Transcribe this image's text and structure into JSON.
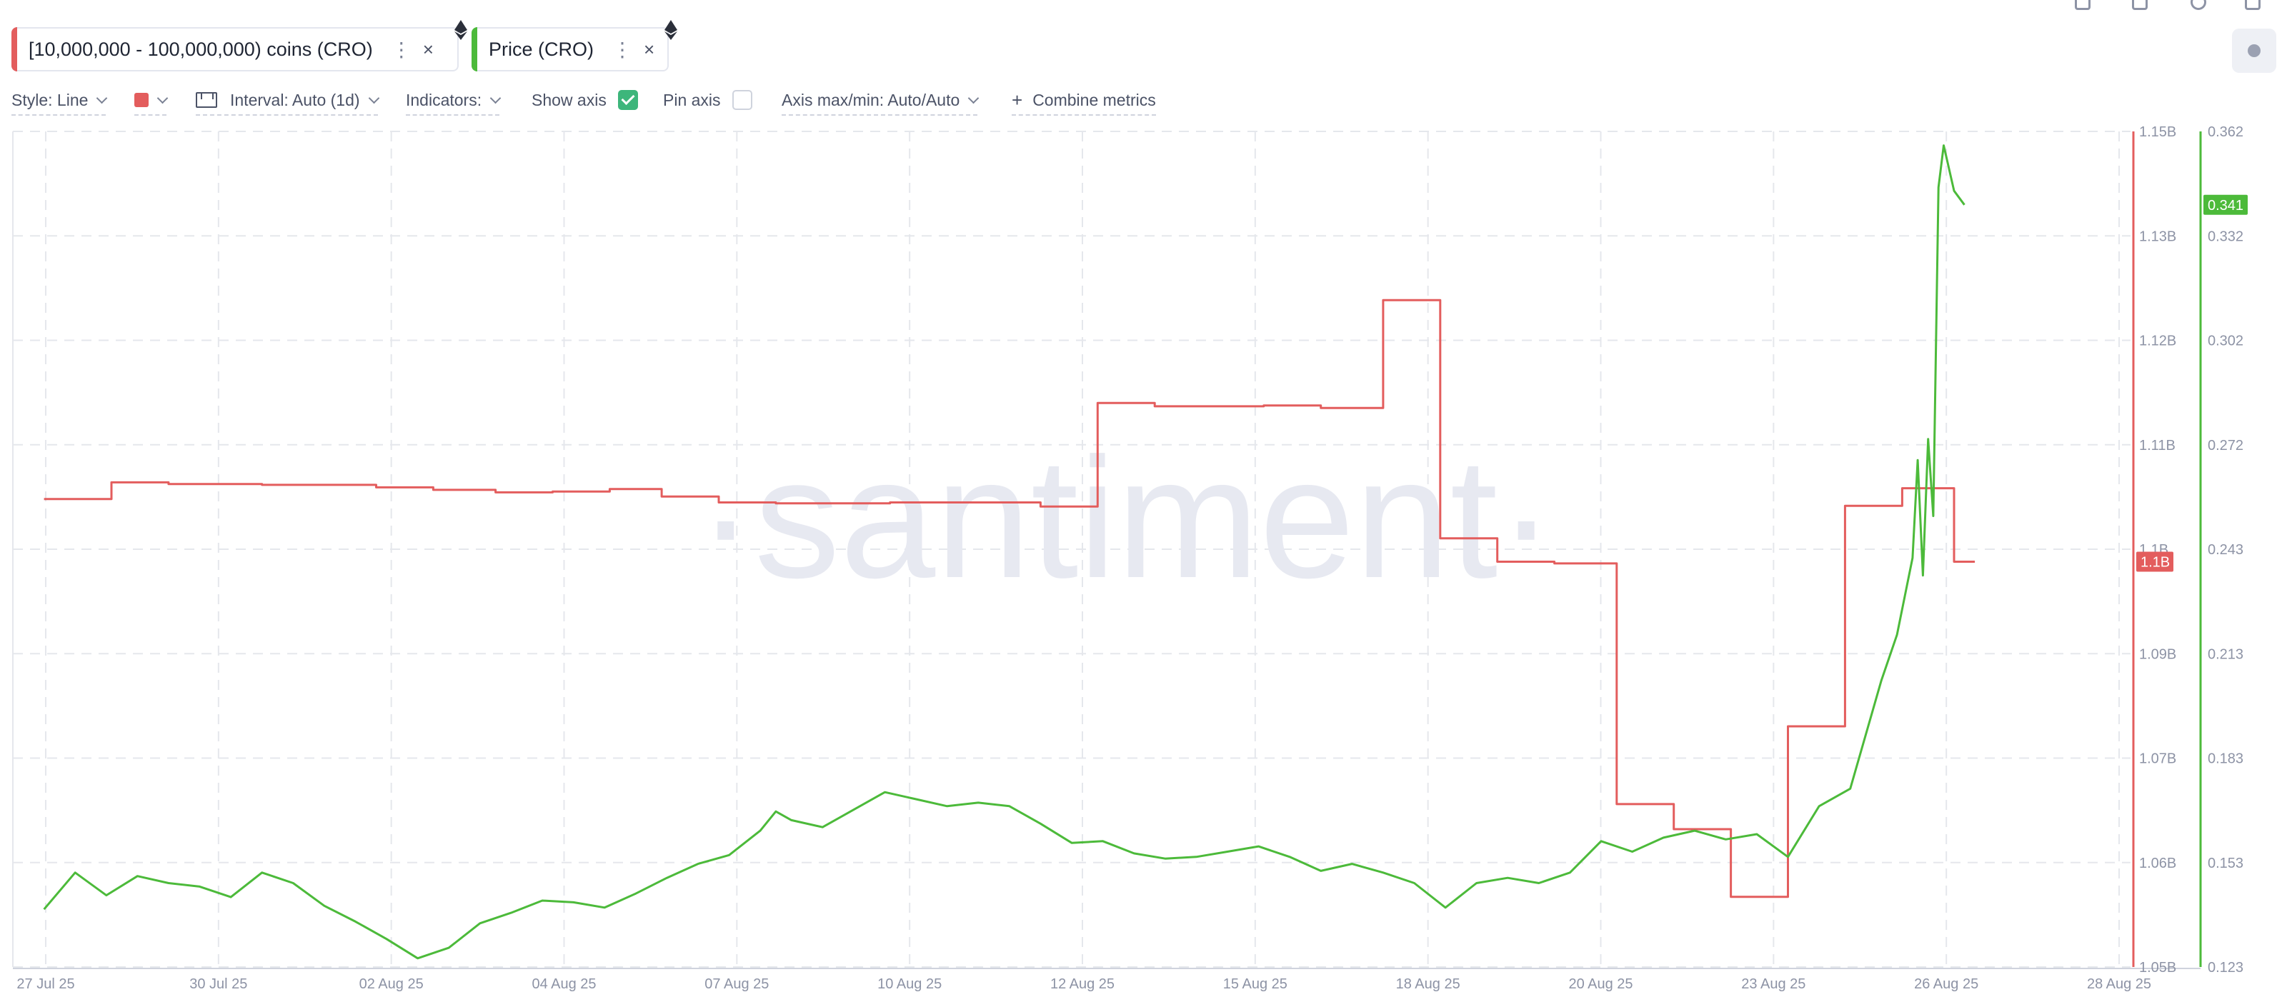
{
  "metrics": [
    {
      "label": "[10,000,000 - 100,000,000) coins (CRO)",
      "color": "#e35d5d",
      "icon": "ethereum-icon"
    },
    {
      "label": "Price (CRO)",
      "color": "#4cba3a",
      "icon": "ethereum-icon"
    }
  ],
  "toolbar": {
    "style_label": "Style: Line",
    "interval_label": "Interval: Auto (1d)",
    "indicators_label": "Indicators:",
    "show_axis_label": "Show axis",
    "show_axis_checked": true,
    "pin_axis_label": "Pin axis",
    "pin_axis_checked": false,
    "axis_label": "Axis max/min: Auto/Auto",
    "combine_label": "Combine metrics",
    "line_color": "#e35d5d"
  },
  "icons": {
    "close": "×",
    "dots": "⋮",
    "plus": "+"
  },
  "watermark": "·santiment·",
  "chart_data": {
    "type": "line",
    "x_ticks": [
      "27 Jul 25",
      "30 Jul 25",
      "02 Aug 25",
      "04 Aug 25",
      "07 Aug 25",
      "10 Aug 25",
      "12 Aug 25",
      "15 Aug 25",
      "18 Aug 25",
      "20 Aug 25",
      "23 Aug 25",
      "26 Aug 25",
      "28 Aug 25"
    ],
    "left_axis": {
      "ticks": [
        "1.15B",
        "1.13B",
        "1.12B",
        "1.11B",
        "1.1B",
        "1.09B",
        "1.07B",
        "1.06B",
        "1.05B"
      ],
      "range": [
        1.05,
        1.15
      ],
      "unit": "B"
    },
    "right_axis": {
      "ticks": [
        "0.362",
        "0.332",
        "0.302",
        "0.272",
        "0.243",
        "0.213",
        "0.183",
        "0.153",
        "0.123"
      ],
      "range": [
        0.123,
        0.362
      ]
    },
    "series": [
      {
        "axis": "left",
        "color": "#e35d5d",
        "step": true,
        "last_label": "1.1B",
        "points": [
          [
            "2025-07-26T12:00",
            1.106
          ],
          [
            "2025-07-27T14:00",
            1.108
          ],
          [
            "2025-07-28T12:00",
            1.1078
          ],
          [
            "2025-07-30T00:00",
            1.1077
          ],
          [
            "2025-07-31T20:00",
            1.1074
          ],
          [
            "2025-08-01T18:00",
            1.1071
          ],
          [
            "2025-08-02T18:00",
            1.1068
          ],
          [
            "2025-08-03T16:00",
            1.1069
          ],
          [
            "2025-08-04T14:00",
            1.1072
          ],
          [
            "2025-08-05T10:00",
            1.1063
          ],
          [
            "2025-08-06T08:00",
            1.1056
          ],
          [
            "2025-08-07T06:00",
            1.1055
          ],
          [
            "2025-08-09T02:00",
            1.1056
          ],
          [
            "2025-08-11T12:00",
            1.1051
          ],
          [
            "2025-08-12T10:00",
            1.1175
          ],
          [
            "2025-08-13T08:00",
            1.1171
          ],
          [
            "2025-08-15T02:00",
            1.1172
          ],
          [
            "2025-08-16T00:00",
            1.1169
          ],
          [
            "2025-08-17T00:00",
            1.1298
          ],
          [
            "2025-08-17T22:00",
            1.1013
          ],
          [
            "2025-08-18T20:00",
            1.0985
          ],
          [
            "2025-08-19T18:00",
            1.0983
          ],
          [
            "2025-08-20T18:00",
            1.0695
          ],
          [
            "2025-08-21T16:00",
            1.0665
          ],
          [
            "2025-08-22T14:00",
            1.0584
          ],
          [
            "2025-08-23T12:00",
            1.0788
          ],
          [
            "2025-08-24T10:00",
            1.1052
          ],
          [
            "2025-08-25T08:00",
            1.1073
          ],
          [
            "2025-08-26T04:00",
            1.0985
          ],
          [
            "2025-08-26T12:00",
            1.0985
          ]
        ]
      },
      {
        "axis": "right",
        "color": "#4cba3a",
        "step": false,
        "last_label": "0.341",
        "points": [
          [
            "2025-07-26T12:00",
            0.1395
          ],
          [
            "2025-07-27T00:00",
            0.15
          ],
          [
            "2025-07-27T12:00",
            0.1435
          ],
          [
            "2025-07-28T00:00",
            0.149
          ],
          [
            "2025-07-28T12:00",
            0.147
          ],
          [
            "2025-07-29T00:00",
            0.146
          ],
          [
            "2025-07-29T12:00",
            0.143
          ],
          [
            "2025-07-30T00:00",
            0.15
          ],
          [
            "2025-07-30T12:00",
            0.147
          ],
          [
            "2025-07-31T00:00",
            0.1405
          ],
          [
            "2025-07-31T12:00",
            0.136
          ],
          [
            "2025-08-01T00:00",
            0.131
          ],
          [
            "2025-08-01T12:00",
            0.1255
          ],
          [
            "2025-08-02T00:00",
            0.1285
          ],
          [
            "2025-08-02T12:00",
            0.1355
          ],
          [
            "2025-08-03T00:00",
            0.1385
          ],
          [
            "2025-08-03T12:00",
            0.142
          ],
          [
            "2025-08-04T00:00",
            0.1415
          ],
          [
            "2025-08-04T12:00",
            0.14
          ],
          [
            "2025-08-05T00:00",
            0.144
          ],
          [
            "2025-08-05T12:00",
            0.1485
          ],
          [
            "2025-08-06T00:00",
            0.1525
          ],
          [
            "2025-08-06T12:00",
            0.155
          ],
          [
            "2025-08-07T00:00",
            0.162
          ],
          [
            "2025-08-07T06:00",
            0.1675
          ],
          [
            "2025-08-07T12:00",
            0.165
          ],
          [
            "2025-08-08T00:00",
            0.163
          ],
          [
            "2025-08-08T12:00",
            0.168
          ],
          [
            "2025-08-09T00:00",
            0.173
          ],
          [
            "2025-08-09T12:00",
            0.171
          ],
          [
            "2025-08-10T00:00",
            0.169
          ],
          [
            "2025-08-10T12:00",
            0.17
          ],
          [
            "2025-08-11T00:00",
            0.169
          ],
          [
            "2025-08-11T12:00",
            0.164
          ],
          [
            "2025-08-12T00:00",
            0.1585
          ],
          [
            "2025-08-12T12:00",
            0.159
          ],
          [
            "2025-08-13T00:00",
            0.1555
          ],
          [
            "2025-08-13T12:00",
            0.154
          ],
          [
            "2025-08-14T00:00",
            0.1545
          ],
          [
            "2025-08-14T12:00",
            0.156
          ],
          [
            "2025-08-15T00:00",
            0.1575
          ],
          [
            "2025-08-15T12:00",
            0.1545
          ],
          [
            "2025-08-16T00:00",
            0.1505
          ],
          [
            "2025-08-16T12:00",
            0.1525
          ],
          [
            "2025-08-17T00:00",
            0.15
          ],
          [
            "2025-08-17T12:00",
            0.147
          ],
          [
            "2025-08-18T00:00",
            0.14
          ],
          [
            "2025-08-18T12:00",
            0.147
          ],
          [
            "2025-08-19T00:00",
            0.1485
          ],
          [
            "2025-08-19T12:00",
            0.147
          ],
          [
            "2025-08-20T00:00",
            0.15
          ],
          [
            "2025-08-20T12:00",
            0.159
          ],
          [
            "2025-08-21T00:00",
            0.156
          ],
          [
            "2025-08-21T12:00",
            0.16
          ],
          [
            "2025-08-22T00:00",
            0.162
          ],
          [
            "2025-08-22T12:00",
            0.1595
          ],
          [
            "2025-08-23T00:00",
            0.161
          ],
          [
            "2025-08-23T12:00",
            0.1545
          ],
          [
            "2025-08-24T00:00",
            0.169
          ],
          [
            "2025-08-24T12:00",
            0.174
          ],
          [
            "2025-08-25T00:00",
            0.205
          ],
          [
            "2025-08-25T06:00",
            0.218
          ],
          [
            "2025-08-25T12:00",
            0.24
          ],
          [
            "2025-08-25T14:00",
            0.268
          ],
          [
            "2025-08-25T16:00",
            0.235
          ],
          [
            "2025-08-25T18:00",
            0.274
          ],
          [
            "2025-08-25T20:00",
            0.252
          ],
          [
            "2025-08-25T22:00",
            0.346
          ],
          [
            "2025-08-26T00:00",
            0.358
          ],
          [
            "2025-08-26T04:00",
            0.345
          ],
          [
            "2025-08-26T08:00",
            0.341
          ]
        ]
      }
    ]
  }
}
